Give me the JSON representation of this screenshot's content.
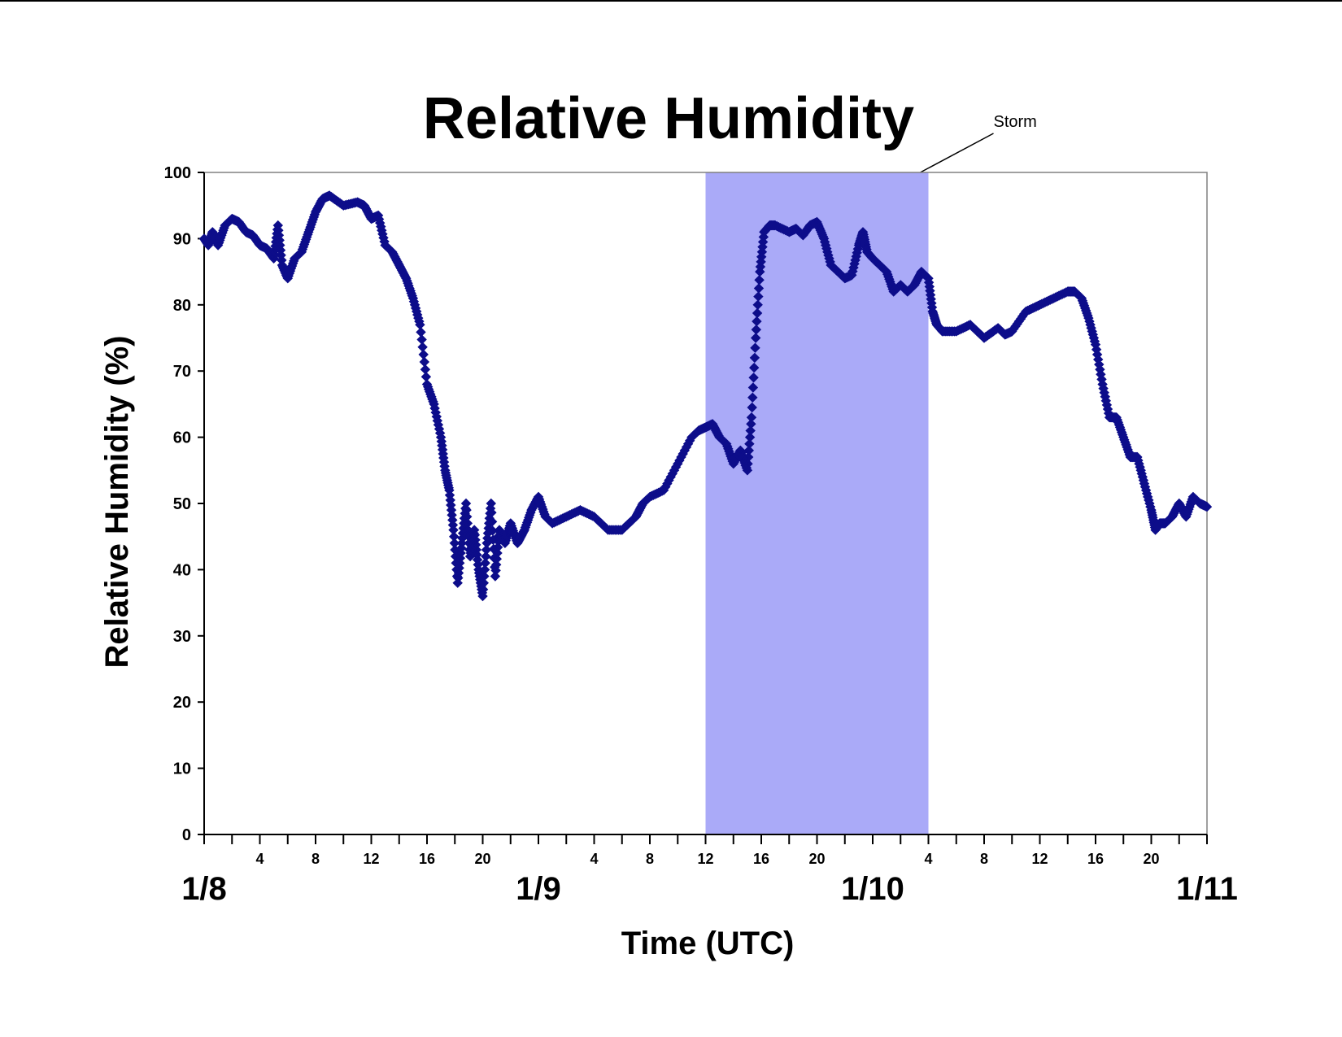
{
  "chart_data": {
    "type": "scatter",
    "title": "Relative Humidity",
    "xlabel": "Time (UTC)",
    "ylabel": "Relative Humidity (%)",
    "ylim": [
      0,
      100
    ],
    "yticks": [
      "0",
      "10",
      "20",
      "30",
      "40",
      "50",
      "60",
      "70",
      "80",
      "90",
      "100"
    ],
    "xlim_hours": [
      0,
      72
    ],
    "day_ticks": [
      {
        "label": "1/8",
        "hour": 0
      },
      {
        "label": "1/9",
        "hour": 24
      },
      {
        "label": "1/10",
        "hour": 48
      },
      {
        "label": "1/11",
        "hour": 72
      }
    ],
    "hour_ticks": [
      {
        "label": "4",
        "hour": 4
      },
      {
        "label": "8",
        "hour": 8
      },
      {
        "label": "12",
        "hour": 12
      },
      {
        "label": "16",
        "hour": 16
      },
      {
        "label": "20",
        "hour": 20
      },
      {
        "label": "4",
        "hour": 28
      },
      {
        "label": "8",
        "hour": 32
      },
      {
        "label": "12",
        "hour": 36
      },
      {
        "label": "16",
        "hour": 40
      },
      {
        "label": "20",
        "hour": 44
      },
      {
        "label": "4",
        "hour": 52
      },
      {
        "label": "8",
        "hour": 56
      },
      {
        "label": "12",
        "hour": 60
      },
      {
        "label": "16",
        "hour": 64
      },
      {
        "label": "20",
        "hour": 68
      }
    ],
    "minor_tick_every_hours": 2,
    "grid": false,
    "shaded_region": {
      "label": "Storm",
      "start_hour": 36,
      "end_hour": 52,
      "color": "#aaaaf8"
    },
    "series": [
      {
        "color": "#0d0d8a",
        "marker": "diamond",
        "points": [
          [
            0,
            90
          ],
          [
            0.3,
            89
          ],
          [
            0.6,
            91
          ],
          [
            1,
            89
          ],
          [
            1.5,
            92
          ],
          [
            2,
            93
          ],
          [
            2.5,
            92.5
          ],
          [
            3,
            91
          ],
          [
            3.5,
            90.5
          ],
          [
            4,
            89
          ],
          [
            4.5,
            88.5
          ],
          [
            5,
            87
          ],
          [
            5.3,
            92
          ],
          [
            5.6,
            86
          ],
          [
            6,
            84
          ],
          [
            6.5,
            87
          ],
          [
            7,
            88
          ],
          [
            7.5,
            91
          ],
          [
            8,
            94
          ],
          [
            8.5,
            96
          ],
          [
            9,
            96.5
          ],
          [
            10,
            95
          ],
          [
            11,
            95.5
          ],
          [
            11.5,
            95
          ],
          [
            12,
            93
          ],
          [
            12.5,
            93.5
          ],
          [
            13,
            89
          ],
          [
            13.5,
            88
          ],
          [
            14,
            86
          ],
          [
            14.5,
            84
          ],
          [
            15,
            81
          ],
          [
            15.5,
            77
          ],
          [
            16,
            68
          ],
          [
            16.5,
            65
          ],
          [
            17,
            60
          ],
          [
            17.3,
            55
          ],
          [
            17.6,
            52
          ],
          [
            17.9,
            46
          ],
          [
            18.2,
            38
          ],
          [
            18.5,
            44
          ],
          [
            18.8,
            50
          ],
          [
            19.1,
            42
          ],
          [
            19.4,
            46
          ],
          [
            19.7,
            40
          ],
          [
            20,
            36
          ],
          [
            20.3,
            44
          ],
          [
            20.6,
            50
          ],
          [
            20.9,
            39
          ],
          [
            21.2,
            46
          ],
          [
            21.6,
            44
          ],
          [
            22,
            47
          ],
          [
            22.5,
            44
          ],
          [
            23,
            46
          ],
          [
            23.5,
            49
          ],
          [
            24,
            51
          ],
          [
            24.5,
            48
          ],
          [
            25,
            47
          ],
          [
            26,
            48
          ],
          [
            27,
            49
          ],
          [
            28,
            48
          ],
          [
            29,
            46
          ],
          [
            30,
            46
          ],
          [
            31,
            48
          ],
          [
            31.5,
            50
          ],
          [
            32,
            51
          ],
          [
            33,
            52
          ],
          [
            34,
            56
          ],
          [
            35,
            60
          ],
          [
            35.5,
            61
          ],
          [
            36,
            61.5
          ],
          [
            36.5,
            62
          ],
          [
            37,
            60
          ],
          [
            37.5,
            59
          ],
          [
            38,
            56
          ],
          [
            38.5,
            58
          ],
          [
            39,
            55
          ],
          [
            39.3,
            63
          ],
          [
            39.6,
            75
          ],
          [
            39.9,
            85
          ],
          [
            40.2,
            91
          ],
          [
            40.6,
            92
          ],
          [
            41,
            92
          ],
          [
            42,
            91
          ],
          [
            42.5,
            91.5
          ],
          [
            43,
            90.5
          ],
          [
            43.5,
            92
          ],
          [
            44,
            92.5
          ],
          [
            44.5,
            90
          ],
          [
            45,
            86
          ],
          [
            45.5,
            85
          ],
          [
            46,
            84
          ],
          [
            46.5,
            84.5
          ],
          [
            47,
            89
          ],
          [
            47.3,
            91
          ],
          [
            47.6,
            88
          ],
          [
            48,
            87
          ],
          [
            48.5,
            86
          ],
          [
            49,
            85
          ],
          [
            49.5,
            82
          ],
          [
            50,
            83
          ],
          [
            50.5,
            82
          ],
          [
            51,
            83
          ],
          [
            51.5,
            85
          ],
          [
            52,
            84
          ],
          [
            52.3,
            79
          ],
          [
            52.6,
            77
          ],
          [
            53,
            76
          ],
          [
            54,
            76
          ],
          [
            55,
            77
          ],
          [
            55.5,
            76
          ],
          [
            56,
            75
          ],
          [
            57,
            76.5
          ],
          [
            57.5,
            75.5
          ],
          [
            58,
            76
          ],
          [
            59,
            79
          ],
          [
            60,
            80
          ],
          [
            61,
            81
          ],
          [
            62,
            82
          ],
          [
            62.5,
            82
          ],
          [
            63,
            81
          ],
          [
            63.5,
            78
          ],
          [
            64,
            74
          ],
          [
            64.5,
            68
          ],
          [
            65,
            63
          ],
          [
            65.5,
            63
          ],
          [
            66,
            60
          ],
          [
            66.5,
            57
          ],
          [
            67,
            57
          ],
          [
            67.5,
            53
          ],
          [
            68,
            49
          ],
          [
            68.3,
            46
          ],
          [
            68.6,
            47
          ],
          [
            69,
            47
          ],
          [
            69.5,
            48
          ],
          [
            70,
            50
          ],
          [
            70.5,
            48
          ],
          [
            71,
            51
          ],
          [
            71.5,
            50
          ],
          [
            72,
            49.5
          ]
        ]
      }
    ]
  }
}
